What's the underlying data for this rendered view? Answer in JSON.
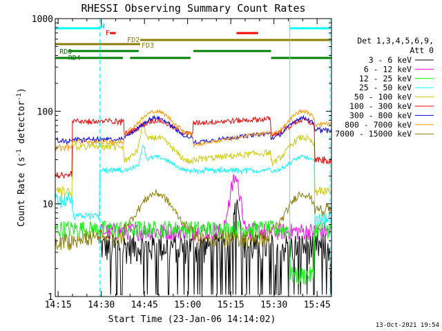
{
  "chart_data": {
    "type": "line",
    "title": "RHESSI Observing Summary Count Rates",
    "xlabel": "Start Time (23-Jan-06 14:14:02)",
    "ylabel_main": "Count Rate (s",
    "ylabel_sup1": "-1",
    "ylabel_mid": " detector",
    "ylabel_sup2": "-1",
    "ylabel_end": ")",
    "ylog": true,
    "ylim": [
      1,
      1000
    ],
    "xlim_min": [
      14.0,
      110.0
    ],
    "x_tick_values": [
      15,
      30,
      45,
      60,
      75,
      90,
      105
    ],
    "x_tick_labels": [
      "14:15",
      "14:30",
      "14:45",
      "15:00",
      "15:15",
      "15:30",
      "15:45"
    ],
    "y_tick_values": [
      1,
      10,
      100,
      1000
    ],
    "y_tick_labels": [
      "1",
      "10",
      "100",
      "1000"
    ],
    "legend_header": [
      "Det 1,3,4,5,6,9,",
      "Att 0"
    ],
    "legend_position": "right",
    "timestamp": "13-Oct-2021 19:54",
    "series": [
      {
        "name": "3 - 6 keV",
        "color": "#000000"
      },
      {
        "name": "6 - 12 keV",
        "color": "#ff00ff"
      },
      {
        "name": "12 - 25 keV",
        "color": "#00ff00"
      },
      {
        "name": "25 - 50 keV",
        "color": "#00ffff"
      },
      {
        "name": "50 - 100 keV",
        "color": "#cccc00"
      },
      {
        "name": "100 - 300 keV",
        "color": "#ff0000"
      },
      {
        "name": "300 - 800 keV",
        "color": "#0000ff"
      },
      {
        "name": "800 - 7000 keV",
        "color": "#ff9900"
      },
      {
        "name": "7000 - 15000 keV",
        "color": "#8b7d00"
      }
    ],
    "vertical_markers": [
      {
        "x": 14.0,
        "style": "solid"
      },
      {
        "x": 29.5,
        "style": "dashed"
      },
      {
        "x": 95.5,
        "style": "solid"
      },
      {
        "x": 109.5,
        "style": "dashed"
      }
    ],
    "status_bars": [
      {
        "label": "N",
        "color": "#00ffff",
        "segments": [
          [
            14.0,
            29.5
          ],
          [
            95.5,
            109.5
          ]
        ],
        "level": 1
      },
      {
        "label": "F",
        "color": "#ff0000",
        "segments": [
          [
            33.0,
            35.0
          ],
          [
            77.0,
            84.5
          ]
        ],
        "level": 2
      },
      {
        "label": "FD2",
        "color": "#8b7d00",
        "segments": [
          [
            43.5,
            110.0
          ]
        ],
        "level": 4
      },
      {
        "label": "FD3",
        "color": "#8b7d00",
        "segments": [
          [
            14.0,
            43.5
          ]
        ],
        "level": 5
      },
      {
        "label": "RD0",
        "color": "#008000",
        "segments": [
          [
            18.5,
            43.0
          ],
          [
            62.0,
            89.0
          ]
        ],
        "level": 6
      },
      {
        "label": "RD4",
        "color": "#008000",
        "segments": [
          [
            14.0,
            37.5
          ],
          [
            40.0,
            61.0
          ],
          [
            89.0,
            110.0
          ]
        ],
        "level": 7
      }
    ]
  }
}
